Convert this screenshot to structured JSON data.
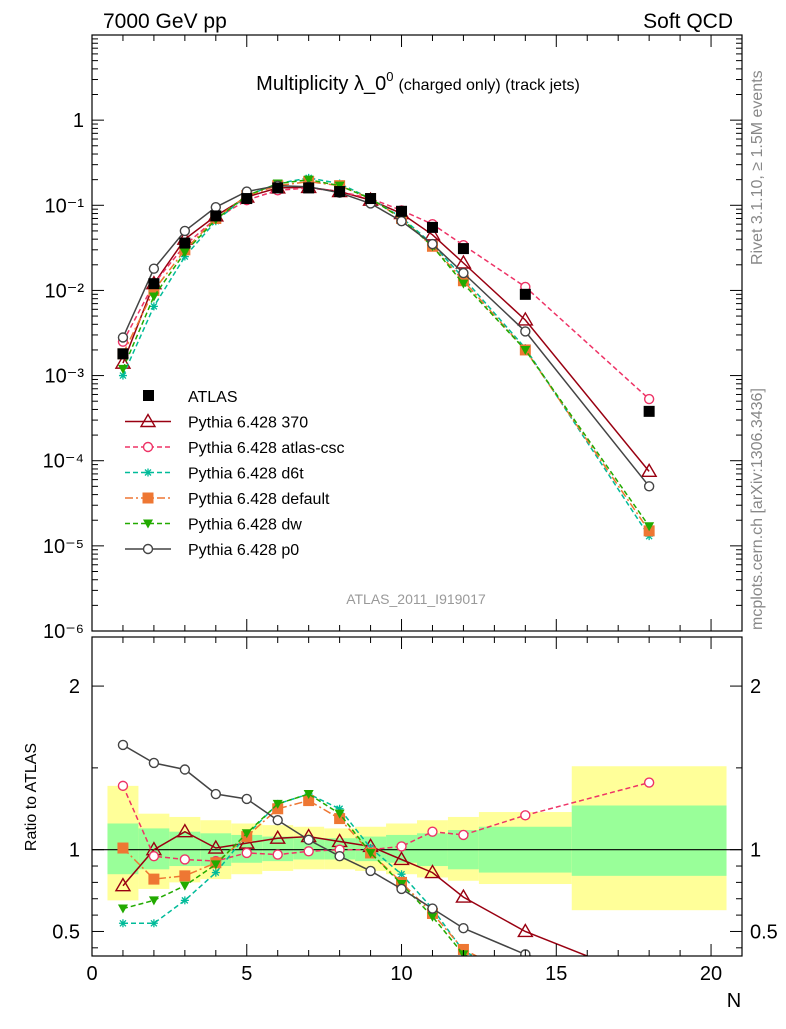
{
  "header": {
    "energy": "7000 GeV pp",
    "process": "Soft QCD"
  },
  "side_labels": {
    "rivet": "Rivet 3.1.10, ≥ 1.5M events",
    "mcplots": "mcplots.cern.ch [arXiv:1306.3436]"
  },
  "chart_data": {
    "type": "line",
    "title_main": "Multiplicity λ_0",
    "title_sup": "0",
    "title_sub": "(charged only) (track jets)",
    "analysis_label": "ATLAS_2011_I919017",
    "xlabel": "N",
    "ylabel_ratio": "Ratio to ATLAS",
    "xlim": [
      0,
      21
    ],
    "ylim_main": [
      1e-06,
      10
    ],
    "ylim_ratio": [
      0.35,
      2.3
    ],
    "y_scale_main": "log",
    "x_ticks": [
      0,
      5,
      10,
      15,
      20
    ],
    "y_ticks_main": [
      "1",
      "10⁻¹",
      "10⁻²",
      "10⁻³",
      "10⁻⁴",
      "10⁻⁵",
      "10⁻⁶"
    ],
    "y_ticks_ratio": [
      "0.5",
      "1",
      "2"
    ],
    "legend_position": "lower-left",
    "data": {
      "name": "ATLAS",
      "x": [
        1,
        2,
        3,
        4,
        5,
        6,
        7,
        8,
        9,
        10,
        11,
        12,
        14,
        18
      ],
      "y": [
        0.0018,
        0.012,
        0.036,
        0.075,
        0.12,
        0.16,
        0.16,
        0.145,
        0.12,
        0.085,
        0.055,
        0.031,
        0.009,
        0.00038
      ]
    },
    "uncertainty_bands": {
      "x_edges": [
        0.5,
        1.5,
        2.5,
        3.5,
        4.5,
        5.5,
        6.5,
        7.5,
        8.5,
        9.5,
        10.5,
        11.5,
        12.5,
        15.5,
        20.5
      ],
      "inner_low": [
        0.85,
        0.88,
        0.9,
        0.9,
        0.92,
        0.93,
        0.94,
        0.94,
        0.93,
        0.92,
        0.9,
        0.88,
        0.86,
        0.84
      ],
      "inner_high": [
        1.16,
        1.13,
        1.11,
        1.1,
        1.09,
        1.08,
        1.07,
        1.07,
        1.08,
        1.09,
        1.1,
        1.12,
        1.14,
        1.27
      ],
      "outer_low": [
        0.69,
        0.76,
        0.8,
        0.82,
        0.85,
        0.87,
        0.88,
        0.88,
        0.87,
        0.85,
        0.83,
        0.81,
        0.79,
        0.63
      ],
      "outer_high": [
        1.39,
        1.22,
        1.2,
        1.18,
        1.16,
        1.15,
        1.14,
        1.13,
        1.14,
        1.16,
        1.18,
        1.2,
        1.23,
        1.51
      ],
      "inner_color": "#99ff99",
      "outer_color": "#ffff99"
    },
    "series": [
      {
        "name": "Pythia 6.428 370",
        "color": "#990011",
        "dash": "solid",
        "marker": "triangle",
        "x": [
          1,
          2,
          3,
          4,
          5,
          6,
          7,
          8,
          9,
          10,
          11,
          12,
          14,
          18
        ],
        "y": [
          0.0014,
          0.012,
          0.04,
          0.075,
          0.125,
          0.16,
          0.162,
          0.145,
          0.115,
          0.08,
          0.045,
          0.021,
          0.0045,
          7.5e-05
        ],
        "ratio": [
          0.78,
          1.0,
          1.11,
          1.01,
          1.04,
          1.07,
          1.08,
          1.05,
          1.02,
          0.94,
          0.86,
          0.71,
          0.5,
          0.2
        ]
      },
      {
        "name": "Pythia 6.428 atlas-csc",
        "color": "#ee3366",
        "dash": "dashed",
        "marker": "open-circle",
        "x": [
          1,
          2,
          3,
          4,
          5,
          6,
          7,
          8,
          9,
          10,
          11,
          12,
          14,
          18
        ],
        "y": [
          0.0025,
          0.012,
          0.034,
          0.07,
          0.115,
          0.15,
          0.16,
          0.145,
          0.12,
          0.087,
          0.06,
          0.034,
          0.011,
          0.00053
        ],
        "ratio": [
          1.39,
          0.96,
          0.94,
          0.93,
          0.98,
          0.97,
          0.99,
          1.0,
          1.0,
          1.02,
          1.11,
          1.09,
          1.21,
          1.41
        ]
      },
      {
        "name": "Pythia 6.428 d6t",
        "color": "#00bb99",
        "dash": "dashed",
        "marker": "star",
        "x": [
          1,
          2,
          3,
          4,
          5,
          6,
          7,
          8,
          9,
          10,
          11,
          12,
          14,
          18
        ],
        "y": [
          0.001,
          0.0065,
          0.025,
          0.065,
          0.13,
          0.18,
          0.21,
          0.18,
          0.12,
          0.072,
          0.035,
          0.014,
          0.0021,
          1.3e-05
        ],
        "ratio": [
          0.55,
          0.55,
          0.69,
          0.86,
          1.09,
          1.28,
          1.34,
          1.25,
          1.01,
          0.85,
          0.64,
          0.38,
          0.2,
          0.1
        ]
      },
      {
        "name": "Pythia 6.428 default",
        "color": "#ee7733",
        "dash": "dashdot",
        "marker": "square",
        "x": [
          1,
          2,
          3,
          4,
          5,
          6,
          7,
          8,
          9,
          10,
          11,
          12,
          14,
          18
        ],
        "y": [
          0.0018,
          0.01,
          0.03,
          0.07,
          0.13,
          0.17,
          0.19,
          0.17,
          0.12,
          0.07,
          0.033,
          0.013,
          0.002,
          1.5e-05
        ],
        "ratio": [
          1.01,
          0.82,
          0.84,
          0.92,
          1.08,
          1.25,
          1.3,
          1.19,
          0.98,
          0.8,
          0.61,
          0.39,
          0.2,
          0.1
        ]
      },
      {
        "name": "Pythia 6.428 dw",
        "color": "#22aa00",
        "dash": "dashed",
        "marker": "down-triangle",
        "x": [
          1,
          2,
          3,
          4,
          5,
          6,
          7,
          8,
          9,
          10,
          11,
          12,
          14,
          18
        ],
        "y": [
          0.0012,
          0.0085,
          0.028,
          0.068,
          0.13,
          0.18,
          0.2,
          0.17,
          0.12,
          0.07,
          0.033,
          0.012,
          0.002,
          1.7e-05
        ],
        "ratio": [
          0.64,
          0.69,
          0.78,
          0.91,
          1.1,
          1.28,
          1.34,
          1.22,
          0.98,
          0.79,
          0.59,
          0.36,
          0.2,
          0.1
        ]
      },
      {
        "name": "Pythia 6.428 p0",
        "color": "#444444",
        "dash": "solid",
        "marker": "open-circle",
        "x": [
          1,
          2,
          3,
          4,
          5,
          6,
          7,
          8,
          9,
          10,
          11,
          12,
          14,
          18
        ],
        "y": [
          0.0028,
          0.018,
          0.05,
          0.095,
          0.145,
          0.17,
          0.165,
          0.14,
          0.105,
          0.065,
          0.035,
          0.016,
          0.0033,
          5e-05
        ],
        "ratio": [
          1.64,
          1.53,
          1.49,
          1.34,
          1.31,
          1.18,
          1.06,
          0.96,
          0.87,
          0.76,
          0.64,
          0.52,
          0.36,
          0.13
        ]
      }
    ]
  }
}
